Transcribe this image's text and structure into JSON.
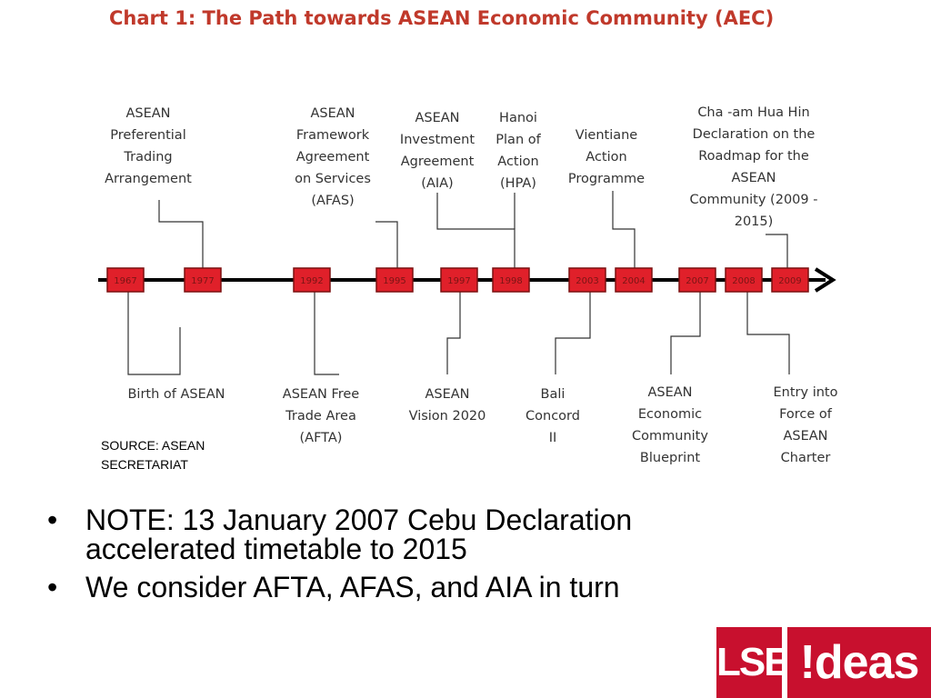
{
  "title": {
    "main": "Chart 1: The Path towards ASEAN Economic Community",
    "abbr": "(AEC)"
  },
  "timeline": {
    "years": [
      "1967",
      "1977",
      "1992",
      "1995",
      "1997",
      "1998",
      "2003",
      "2004",
      "2007",
      "2008",
      "2009"
    ],
    "line_color": "#000000",
    "box_color": "#e0202a",
    "box_border": "#7a1010"
  },
  "events_above": [
    {
      "year": "1977",
      "label": "ASEAN\nPreferential\nTrading\nArrangement"
    },
    {
      "year": "1995",
      "label": "ASEAN\nFramework\nAgreement\non Services\n(AFAS)"
    },
    {
      "year": "1998",
      "label": "ASEAN\nInvestment\nAgreement\n(AIA)"
    },
    {
      "year": "1998",
      "label": "Hanoi\nPlan of\nAction\n(HPA)"
    },
    {
      "year": "2004",
      "label": "Vientiane\nAction\nProgramme"
    },
    {
      "year": "2009",
      "label": "Cha -am Hua Hin\nDeclaration on the\nRoadmap for the\nASEAN\nCommunity (2009 -\n2015)"
    }
  ],
  "events_below": [
    {
      "year": "1967",
      "label": "Birth of ASEAN"
    },
    {
      "year": "1992",
      "label": "ASEAN Free\nTrade Area\n(AFTA)"
    },
    {
      "year": "1997",
      "label": "ASEAN\nVision 2020"
    },
    {
      "year": "2003",
      "label": "Bali\nConcord\nII"
    },
    {
      "year": "2007",
      "label": "ASEAN\nEconomic\nCommunity\nBlueprint"
    },
    {
      "year": "2008",
      "label": "Entry into\nForce of\nASEAN\nCharter"
    }
  ],
  "source": "SOURCE: ASEAN\nSECRETARIAT",
  "bullets": [
    {
      "marker": "•",
      "text": "NOTE: 13 January 2007 Cebu Declaration\naccelerated timetable to 2015"
    },
    {
      "marker": "•",
      "text": "We consider AFTA, AFAS, and AIA in turn"
    }
  ],
  "logo": {
    "left": "LSE",
    "right": "!deas",
    "color": "#c8102e"
  }
}
